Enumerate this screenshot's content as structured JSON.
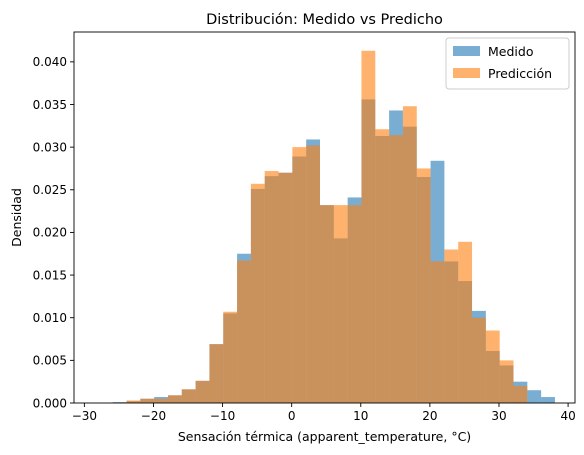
{
  "chart_data": {
    "type": "histogram",
    "title": "Distribución: Medido vs Predicho",
    "xlabel": "Sensación térmica (apparent_temperature, °C)",
    "ylabel": "Densidad",
    "xlim": [
      -31.5,
      41
    ],
    "ylim": [
      0,
      0.0435
    ],
    "xticks": [
      -30,
      -20,
      -10,
      0,
      10,
      20,
      30,
      40
    ],
    "yticks": [
      0.0,
      0.005,
      0.01,
      0.015,
      0.02,
      0.025,
      0.03,
      0.035,
      0.04
    ],
    "ytick_labels": [
      "0.000",
      "0.005",
      "0.010",
      "0.015",
      "0.020",
      "0.025",
      "0.030",
      "0.035",
      "0.040"
    ],
    "grid": false,
    "legend_position": "top-right",
    "series": [
      {
        "name": "Medido",
        "color": "#1f77b4",
        "alpha": 0.6,
        "bin_edges": [
          -25.9,
          -23.9,
          -21.9,
          -19.9,
          -17.9,
          -15.9,
          -13.9,
          -11.9,
          -9.9,
          -7.9,
          -5.9,
          -3.9,
          -1.9,
          0.1,
          2.1,
          4.1,
          6.1,
          8.1,
          10.1,
          12.1,
          14.1,
          16.1,
          18.1,
          20.1,
          22.1,
          24.1,
          26.1,
          28.1,
          30.1,
          32.1,
          34.1,
          36.1,
          38.1
        ],
        "values": [
          0.0001,
          0.0002,
          0.0005,
          0.0007,
          0.0009,
          0.0016,
          0.0026,
          0.0069,
          0.0105,
          0.0175,
          0.0251,
          0.0266,
          0.027,
          0.0289,
          0.0309,
          0.0232,
          0.0193,
          0.0241,
          0.0356,
          0.0313,
          0.0343,
          0.0324,
          0.0265,
          0.0284,
          0.0166,
          0.0143,
          0.0108,
          0.0061,
          0.0044,
          0.0025,
          0.0015,
          0.0007
        ]
      },
      {
        "name": "Predicción",
        "color": "#ff7f0e",
        "alpha": 0.6,
        "bin_edges": [
          -25.9,
          -23.9,
          -21.9,
          -19.9,
          -17.9,
          -15.9,
          -13.9,
          -11.9,
          -9.9,
          -7.9,
          -5.9,
          -3.9,
          -1.9,
          0.1,
          2.1,
          4.1,
          6.1,
          8.1,
          10.1,
          12.1,
          14.1,
          16.1,
          18.1,
          20.1,
          22.1,
          24.1,
          26.1,
          28.1,
          30.1,
          32.1,
          34.1,
          36.1,
          38.1
        ],
        "values": [
          0.0,
          0.0003,
          0.0005,
          0.0005,
          0.0009,
          0.0016,
          0.0026,
          0.0069,
          0.0107,
          0.0167,
          0.0257,
          0.0272,
          0.027,
          0.03,
          0.0302,
          0.0232,
          0.0232,
          0.0232,
          0.0413,
          0.0321,
          0.0314,
          0.0348,
          0.0275,
          0.0166,
          0.018,
          0.0189,
          0.01,
          0.0085,
          0.005,
          0.002,
          0.0,
          0.0
        ]
      }
    ]
  }
}
